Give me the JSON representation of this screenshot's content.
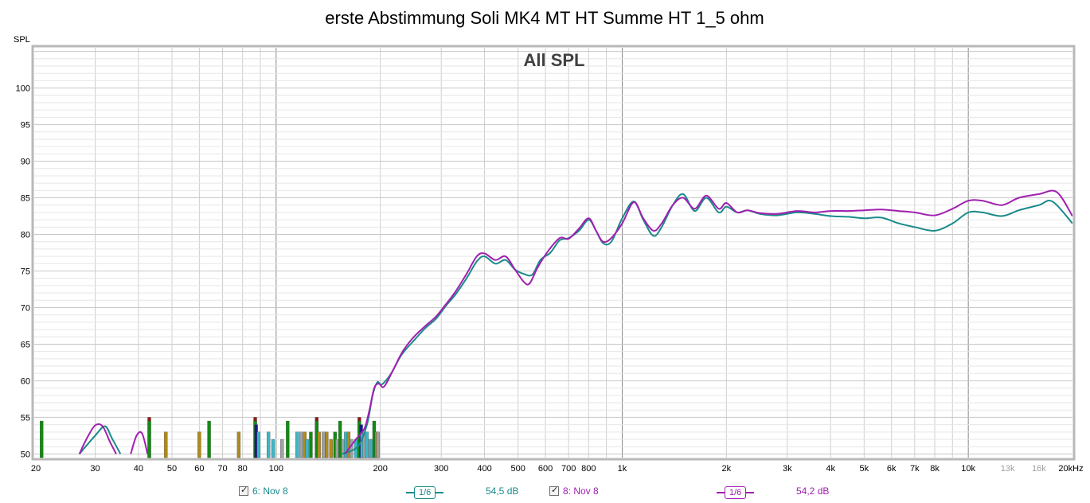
{
  "chart_data": {
    "type": "line",
    "title": "erste Abstimmung Soli MK4 MT HT Summe HT 1_5 ohm",
    "subtitle": "All SPL",
    "ylabel": "SPL",
    "xlabel": "",
    "x_scale": "log",
    "xlim": [
      20,
      20000
    ],
    "ylim": [
      49.5,
      105.5
    ],
    "x_ticks": [
      {
        "v": 20,
        "l": "20",
        "c": "#000000"
      },
      {
        "v": 30,
        "l": "30",
        "c": "#000000"
      },
      {
        "v": 40,
        "l": "40",
        "c": "#000000"
      },
      {
        "v": 50,
        "l": "50",
        "c": "#000000"
      },
      {
        "v": 60,
        "l": "60",
        "c": "#000000"
      },
      {
        "v": 70,
        "l": "70",
        "c": "#000000"
      },
      {
        "v": 80,
        "l": "80",
        "c": "#000000"
      },
      {
        "v": 100,
        "l": "100",
        "c": "#000000"
      },
      {
        "v": 200,
        "l": "200",
        "c": "#000000"
      },
      {
        "v": 300,
        "l": "300",
        "c": "#000000"
      },
      {
        "v": 400,
        "l": "400",
        "c": "#000000"
      },
      {
        "v": 500,
        "l": "500",
        "c": "#000000"
      },
      {
        "v": 600,
        "l": "600",
        "c": "#000000"
      },
      {
        "v": 700,
        "l": "700",
        "c": "#000000"
      },
      {
        "v": 800,
        "l": "800",
        "c": "#000000"
      },
      {
        "v": 1000,
        "l": "1k",
        "c": "#000000"
      },
      {
        "v": 2000,
        "l": "2k",
        "c": "#000000"
      },
      {
        "v": 3000,
        "l": "3k",
        "c": "#000000"
      },
      {
        "v": 4000,
        "l": "4k",
        "c": "#000000"
      },
      {
        "v": 5000,
        "l": "5k",
        "c": "#000000"
      },
      {
        "v": 6000,
        "l": "6k",
        "c": "#000000"
      },
      {
        "v": 7000,
        "l": "7k",
        "c": "#000000"
      },
      {
        "v": 8000,
        "l": "8k",
        "c": "#000000"
      },
      {
        "v": 10000,
        "l": "10k",
        "c": "#000000"
      },
      {
        "v": 13000,
        "l": "13k",
        "c": "#a0a0a0"
      },
      {
        "v": 16000,
        "l": "16k",
        "c": "#a0a0a0"
      },
      {
        "v": 20000,
        "l": "20kHz",
        "c": "#000000"
      }
    ],
    "y_ticks": [
      50,
      55,
      60,
      65,
      70,
      75,
      80,
      85,
      90,
      95,
      100
    ],
    "series": [
      {
        "name": "6: Nov 8",
        "color": "#1a8a8a",
        "points": [
          [
            27,
            50
          ],
          [
            28.5,
            51.3
          ],
          [
            30,
            52.5
          ],
          [
            32,
            53.8
          ],
          [
            33.5,
            52.2
          ],
          [
            35.5,
            50
          ],
          [
            155,
            50
          ],
          [
            172,
            51
          ],
          [
            183,
            54
          ],
          [
            190,
            58
          ],
          [
            196,
            59.8
          ],
          [
            202,
            59.5
          ],
          [
            215,
            61
          ],
          [
            230,
            63.5
          ],
          [
            250,
            65.5
          ],
          [
            270,
            67.2
          ],
          [
            290,
            68.5
          ],
          [
            310,
            70.3
          ],
          [
            330,
            71.8
          ],
          [
            355,
            74
          ],
          [
            380,
            76.3
          ],
          [
            400,
            77
          ],
          [
            430,
            76
          ],
          [
            460,
            76.5
          ],
          [
            490,
            75.2
          ],
          [
            520,
            74.6
          ],
          [
            550,
            74.5
          ],
          [
            580,
            76.5
          ],
          [
            620,
            77.5
          ],
          [
            660,
            79.2
          ],
          [
            700,
            79.5
          ],
          [
            750,
            80.5
          ],
          [
            800,
            82
          ],
          [
            840,
            80.5
          ],
          [
            880,
            78.8
          ],
          [
            930,
            79
          ],
          [
            1000,
            82.2
          ],
          [
            1080,
            84.5
          ],
          [
            1150,
            82
          ],
          [
            1230,
            79.8
          ],
          [
            1300,
            81
          ],
          [
            1400,
            84
          ],
          [
            1500,
            85.5
          ],
          [
            1620,
            83.2
          ],
          [
            1750,
            85
          ],
          [
            1900,
            83
          ],
          [
            2000,
            83.8
          ],
          [
            2150,
            83
          ],
          [
            2300,
            83.3
          ],
          [
            2500,
            82.8
          ],
          [
            2800,
            82.6
          ],
          [
            3200,
            83
          ],
          [
            3600,
            82.8
          ],
          [
            4000,
            82.5
          ],
          [
            4500,
            82.4
          ],
          [
            5000,
            82.2
          ],
          [
            5600,
            82.3
          ],
          [
            6300,
            81.5
          ],
          [
            7000,
            81
          ],
          [
            8000,
            80.5
          ],
          [
            9000,
            81.5
          ],
          [
            10000,
            83
          ],
          [
            11000,
            83
          ],
          [
            12500,
            82.5
          ],
          [
            14000,
            83.3
          ],
          [
            16000,
            84
          ],
          [
            17500,
            84.5
          ],
          [
            20000,
            81.5
          ]
        ]
      },
      {
        "name": "8: Nov 8",
        "color": "#a020b0",
        "points": [
          [
            27,
            50
          ],
          [
            28.5,
            52.3
          ],
          [
            30,
            53.9
          ],
          [
            31.5,
            53.8
          ],
          [
            33,
            51.8
          ],
          [
            34.5,
            50
          ],
          [
            38,
            50
          ],
          [
            39.5,
            52.5
          ],
          [
            41,
            52.8
          ],
          [
            42.5,
            50
          ],
          [
            158,
            50
          ],
          [
            170,
            52
          ],
          [
            180,
            53.5
          ],
          [
            186,
            56
          ],
          [
            192,
            59
          ],
          [
            198,
            59.6
          ],
          [
            205,
            59.2
          ],
          [
            218,
            61.5
          ],
          [
            232,
            64
          ],
          [
            250,
            66
          ],
          [
            270,
            67.5
          ],
          [
            290,
            68.8
          ],
          [
            310,
            70.5
          ],
          [
            330,
            72.2
          ],
          [
            355,
            74.6
          ],
          [
            380,
            77
          ],
          [
            400,
            77.4
          ],
          [
            430,
            76.5
          ],
          [
            460,
            77
          ],
          [
            490,
            75.2
          ],
          [
            520,
            73.5
          ],
          [
            540,
            73.3
          ],
          [
            570,
            75.5
          ],
          [
            610,
            77.7
          ],
          [
            660,
            79.5
          ],
          [
            700,
            79.4
          ],
          [
            750,
            80.8
          ],
          [
            800,
            82.2
          ],
          [
            840,
            80.5
          ],
          [
            880,
            79
          ],
          [
            930,
            79.5
          ],
          [
            1000,
            81.5
          ],
          [
            1080,
            84.4
          ],
          [
            1150,
            82.2
          ],
          [
            1230,
            80.5
          ],
          [
            1300,
            81.5
          ],
          [
            1400,
            84
          ],
          [
            1500,
            85
          ],
          [
            1620,
            83.5
          ],
          [
            1750,
            85.3
          ],
          [
            1900,
            83.5
          ],
          [
            2000,
            84.3
          ],
          [
            2150,
            83
          ],
          [
            2300,
            83.3
          ],
          [
            2500,
            82.9
          ],
          [
            2800,
            82.8
          ],
          [
            3200,
            83.2
          ],
          [
            3600,
            83
          ],
          [
            4000,
            83.2
          ],
          [
            4500,
            83.2
          ],
          [
            5000,
            83.3
          ],
          [
            5600,
            83.4
          ],
          [
            6300,
            83.2
          ],
          [
            7000,
            83
          ],
          [
            8000,
            82.6
          ],
          [
            9000,
            83.5
          ],
          [
            10000,
            84.6
          ],
          [
            11000,
            84.6
          ],
          [
            12500,
            84
          ],
          [
            14000,
            85
          ],
          [
            16000,
            85.5
          ],
          [
            18000,
            85.8
          ],
          [
            20000,
            82.5
          ]
        ]
      }
    ],
    "bars": [
      {
        "f": 21,
        "top": 54.5,
        "c": "#138a13"
      },
      {
        "f": 43,
        "top": 55,
        "c": "#8a1a1a"
      },
      {
        "f": 43,
        "top": 54.5,
        "c": "#138a13"
      },
      {
        "f": 48,
        "top": 53,
        "c": "#b08a1a"
      },
      {
        "f": 60,
        "top": 53,
        "c": "#b08a1a"
      },
      {
        "f": 64,
        "top": 54.5,
        "c": "#138a13"
      },
      {
        "f": 78,
        "top": 53,
        "c": "#b08a1a"
      },
      {
        "f": 87,
        "top": 55,
        "c": "#8a1a1a"
      },
      {
        "f": 87,
        "top": 54.5,
        "c": "#138a13"
      },
      {
        "f": 87.5,
        "top": 54,
        "c": "#1a1a8a"
      },
      {
        "f": 89,
        "top": 53,
        "c": "#3ab8c8"
      },
      {
        "f": 95,
        "top": 53,
        "c": "#3ab8c8"
      },
      {
        "f": 98,
        "top": 52,
        "c": "#3ab8c8"
      },
      {
        "f": 104,
        "top": 52,
        "c": "#a0a0a0"
      },
      {
        "f": 108,
        "top": 54.5,
        "c": "#138a13"
      },
      {
        "f": 115,
        "top": 53,
        "c": "#3ab8c8"
      },
      {
        "f": 118,
        "top": 53,
        "c": "#a0a0a0"
      },
      {
        "f": 121,
        "top": 53,
        "c": "#b08a1a"
      },
      {
        "f": 123,
        "top": 52,
        "c": "#3ab8c8"
      },
      {
        "f": 126,
        "top": 53,
        "c": "#138a13"
      },
      {
        "f": 131,
        "top": 55,
        "c": "#8a1a1a"
      },
      {
        "f": 131,
        "top": 54.5,
        "c": "#138a13"
      },
      {
        "f": 133,
        "top": 53,
        "c": "#b08a1a"
      },
      {
        "f": 137,
        "top": 53,
        "c": "#a0a0a0"
      },
      {
        "f": 140,
        "top": 53,
        "c": "#b08a1a"
      },
      {
        "f": 144,
        "top": 52,
        "c": "#b08a1a"
      },
      {
        "f": 148,
        "top": 53,
        "c": "#138a13"
      },
      {
        "f": 150,
        "top": 52,
        "c": "#a0a0a0"
      },
      {
        "f": 153,
        "top": 54.5,
        "c": "#138a13"
      },
      {
        "f": 156,
        "top": 52,
        "c": "#a0a0a0"
      },
      {
        "f": 159,
        "top": 53,
        "c": "#3ab8c8"
      },
      {
        "f": 162,
        "top": 53,
        "c": "#b08a1a"
      },
      {
        "f": 165,
        "top": 52,
        "c": "#a0a0a0"
      },
      {
        "f": 170,
        "top": 52,
        "c": "#3ab8c8"
      },
      {
        "f": 174,
        "top": 55,
        "c": "#8a1a1a"
      },
      {
        "f": 174,
        "top": 54.5,
        "c": "#138a13"
      },
      {
        "f": 176,
        "top": 54,
        "c": "#1a1a8a"
      },
      {
        "f": 177,
        "top": 53,
        "c": "#3ab8c8"
      },
      {
        "f": 180,
        "top": 53,
        "c": "#a0a0a0"
      },
      {
        "f": 183,
        "top": 53,
        "c": "#3ab8c8"
      },
      {
        "f": 187,
        "top": 52,
        "c": "#a0a0a0"
      },
      {
        "f": 189,
        "top": 52,
        "c": "#3ab8c8"
      },
      {
        "f": 192,
        "top": 54.5,
        "c": "#138a13"
      },
      {
        "f": 195,
        "top": 53,
        "c": "#b08a1a"
      },
      {
        "f": 197,
        "top": 53,
        "c": "#a0a0a0"
      }
    ]
  },
  "legend": [
    {
      "label": "6: Nov 8",
      "smoothing": "1/6",
      "level": "54,5 dB",
      "color": "#1a8a8a",
      "checked": true
    },
    {
      "label": "8: Nov 8",
      "smoothing": "1/6",
      "level": "54,2 dB",
      "color": "#a020b0",
      "checked": true
    }
  ]
}
